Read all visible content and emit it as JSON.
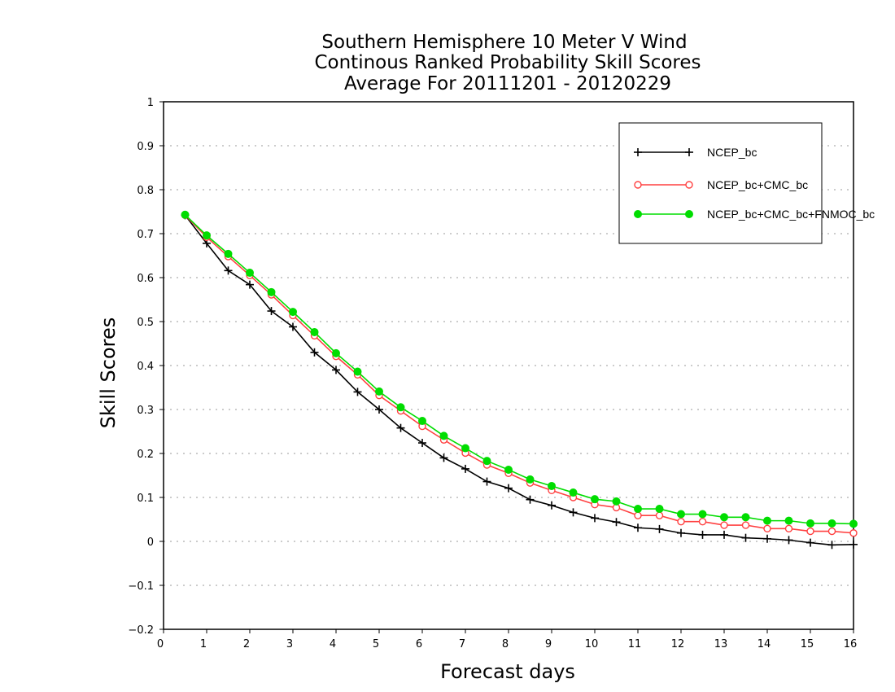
{
  "chart_data": {
    "type": "line",
    "title": [
      "Southern Hemisphere 10 Meter V Wind",
      "Continous Ranked Probability Skill Scores",
      "Average For 20111201 - 20120229"
    ],
    "xlabel": "Forecast days",
    "ylabel": "Skill Scores",
    "xlim": [
      0,
      16
    ],
    "ylim": [
      -0.2,
      1
    ],
    "xticks": [
      "0",
      "1",
      "2",
      "3",
      "4",
      "5",
      "6",
      "7",
      "8",
      "9",
      "10",
      "11",
      "12",
      "13",
      "14",
      "15",
      "16"
    ],
    "yticks": [
      "−0.2",
      "−0.1",
      "0",
      "0.1",
      "0.2",
      "0.3",
      "0.4",
      "0.5",
      "0.6",
      "0.7",
      "0.8",
      "0.9",
      "1"
    ],
    "grid": "horizontal dotted",
    "legend_position": "top-right",
    "x": [
      0.5,
      1,
      1.5,
      2,
      2.5,
      3,
      3.5,
      4,
      4.5,
      5,
      5.5,
      6,
      6.5,
      7,
      7.5,
      8,
      8.5,
      9,
      9.5,
      10,
      10.5,
      11,
      11.5,
      12,
      12.5,
      13,
      13.5,
      14,
      14.5,
      15,
      15.5,
      16
    ],
    "series": [
      {
        "name": "NCEP_bc",
        "color": "#000000",
        "marker": "plus",
        "values": [
          0.742,
          0.678,
          0.616,
          0.584,
          0.524,
          0.488,
          0.43,
          0.39,
          0.34,
          0.3,
          0.258,
          0.224,
          0.19,
          0.165,
          0.136,
          0.121,
          0.095,
          0.082,
          0.066,
          0.053,
          0.044,
          0.031,
          0.028,
          0.019,
          0.015,
          0.015,
          0.008,
          0.006,
          0.003,
          -0.003,
          -0.008,
          -0.007
        ]
      },
      {
        "name": "NCEP_bc+CMC_bc",
        "color": "#ff4040",
        "marker": "open-circle",
        "values": [
          0.742,
          0.692,
          0.648,
          0.605,
          0.561,
          0.514,
          0.468,
          0.421,
          0.379,
          0.332,
          0.297,
          0.262,
          0.231,
          0.201,
          0.174,
          0.155,
          0.133,
          0.116,
          0.1,
          0.084,
          0.077,
          0.059,
          0.059,
          0.045,
          0.045,
          0.037,
          0.037,
          0.029,
          0.029,
          0.023,
          0.023,
          0.019
        ]
      },
      {
        "name": "NCEP_bc+CMC_bc+FNMOC_bc",
        "color": "#00dd00",
        "marker": "filled-circle",
        "values": [
          0.743,
          0.696,
          0.654,
          0.611,
          0.567,
          0.522,
          0.476,
          0.428,
          0.386,
          0.341,
          0.305,
          0.274,
          0.24,
          0.212,
          0.183,
          0.163,
          0.141,
          0.126,
          0.111,
          0.096,
          0.091,
          0.074,
          0.074,
          0.062,
          0.062,
          0.055,
          0.055,
          0.047,
          0.047,
          0.041,
          0.041,
          0.04
        ]
      }
    ]
  }
}
